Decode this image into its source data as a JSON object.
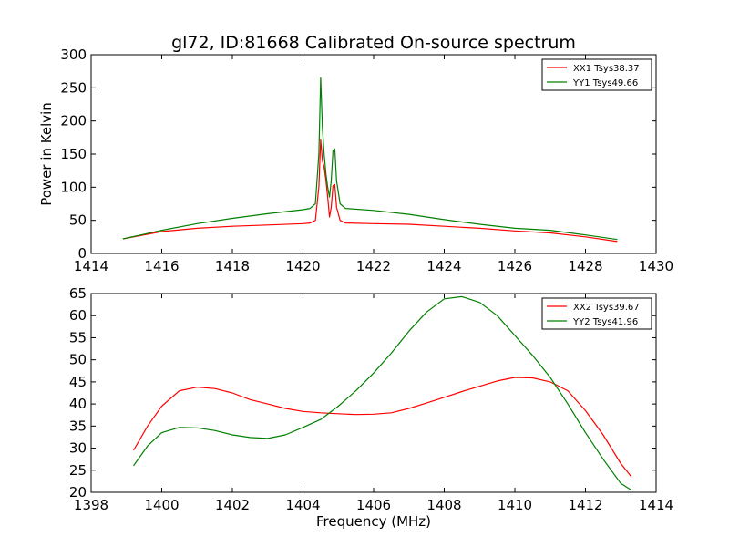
{
  "title": "gl72, ID:81668 Calibrated On-source spectrum",
  "chart_data": [
    {
      "type": "line",
      "title": "gl72, ID:81668 Calibrated On-source spectrum",
      "xlabel": "",
      "ylabel": "Power in Kelvin",
      "xlim": [
        1414,
        1430
      ],
      "ylim": [
        0,
        300
      ],
      "x_ticks": [
        "1414",
        "1416",
        "1418",
        "1420",
        "1422",
        "1424",
        "1426",
        "1428",
        "1430"
      ],
      "y_ticks": [
        "0",
        "50",
        "100",
        "150",
        "200",
        "250",
        "300"
      ],
      "legend_position": "top-right",
      "series": [
        {
          "name": "XX1 Tsys38.37",
          "color": "#ff0000",
          "x": [
            1414.9,
            1415.5,
            1416,
            1417,
            1418,
            1419,
            1420,
            1420.2,
            1420.35,
            1420.45,
            1420.5,
            1420.55,
            1420.6,
            1420.65,
            1420.7,
            1420.75,
            1420.8,
            1420.85,
            1420.9,
            1420.95,
            1421.05,
            1421.2,
            1422,
            1423,
            1424,
            1425,
            1426,
            1427,
            1428,
            1428.9
          ],
          "y": [
            22,
            28,
            33,
            38,
            41,
            43,
            45,
            46,
            50,
            100,
            172,
            140,
            130,
            110,
            85,
            55,
            70,
            102,
            104,
            70,
            50,
            46,
            45,
            44,
            41,
            38,
            34,
            31,
            25,
            18
          ]
        },
        {
          "name": "YY1 Tsys49.66",
          "color": "#008000",
          "x": [
            1414.9,
            1415.5,
            1416,
            1417,
            1418,
            1419,
            1420,
            1420.2,
            1420.35,
            1420.45,
            1420.5,
            1420.55,
            1420.6,
            1420.65,
            1420.7,
            1420.75,
            1420.8,
            1420.85,
            1420.9,
            1420.95,
            1421.05,
            1421.2,
            1422,
            1423,
            1424,
            1425,
            1426,
            1427,
            1428,
            1428.9
          ],
          "y": [
            22,
            29,
            35,
            45,
            53,
            60,
            66,
            68,
            75,
            150,
            265,
            190,
            150,
            120,
            100,
            85,
            110,
            155,
            158,
            110,
            75,
            68,
            65,
            59,
            51,
            44,
            38,
            35,
            28,
            21
          ]
        }
      ]
    },
    {
      "type": "line",
      "title": "",
      "xlabel": "Frequency (MHz)",
      "ylabel": "",
      "xlim": [
        1398,
        1414
      ],
      "ylim": [
        20,
        65
      ],
      "x_ticks": [
        "1398",
        "1400",
        "1402",
        "1404",
        "1406",
        "1408",
        "1410",
        "1412",
        "1414"
      ],
      "y_ticks": [
        "20",
        "25",
        "30",
        "35",
        "40",
        "45",
        "50",
        "55",
        "60",
        "65"
      ],
      "legend_position": "top-right",
      "series": [
        {
          "name": "XX2 Tsys39.67",
          "color": "#ff0000",
          "x": [
            1399.2,
            1399.6,
            1400,
            1400.5,
            1401,
            1401.5,
            1402,
            1402.5,
            1403,
            1403.5,
            1404,
            1404.5,
            1405,
            1405.5,
            1406,
            1406.5,
            1407,
            1407.5,
            1408,
            1408.5,
            1409,
            1409.5,
            1410,
            1410.5,
            1411,
            1411.5,
            1412,
            1412.5,
            1413,
            1413.3
          ],
          "y": [
            29.5,
            35,
            39.5,
            43,
            43.8,
            43.5,
            42.5,
            41,
            40,
            39,
            38.3,
            38,
            37.8,
            37.6,
            37.7,
            38,
            39,
            40.2,
            41.5,
            42.8,
            44,
            45.2,
            46,
            45.9,
            45,
            43,
            38.5,
            33,
            26.5,
            23.5
          ]
        },
        {
          "name": "YY2 Tsys41.96",
          "color": "#008000",
          "x": [
            1399.2,
            1399.6,
            1400,
            1400.5,
            1401,
            1401.5,
            1402,
            1402.5,
            1403,
            1403.5,
            1404,
            1404.5,
            1405,
            1405.5,
            1406,
            1406.5,
            1407,
            1407.5,
            1408,
            1408.5,
            1409,
            1409.5,
            1410,
            1410.5,
            1411,
            1411.5,
            1412,
            1412.5,
            1413,
            1413.3
          ],
          "y": [
            26,
            30.5,
            33.5,
            34.7,
            34.6,
            34,
            33,
            32.4,
            32.2,
            33,
            34.7,
            36.5,
            39.5,
            43,
            47,
            51.5,
            56.5,
            60.8,
            63.8,
            64.3,
            63,
            60,
            55.5,
            51,
            46,
            40,
            33.5,
            27.5,
            22,
            20.5
          ]
        }
      ]
    }
  ]
}
